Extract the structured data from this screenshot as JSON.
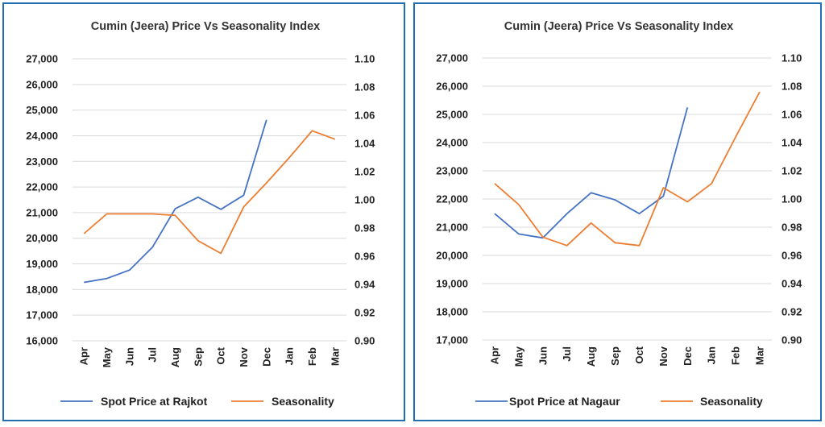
{
  "chart_data": [
    {
      "type": "line",
      "title": "Cumin (Jeera) Price Vs Seasonality Index",
      "categories": [
        "Apr",
        "May",
        "Jun",
        "Jul",
        "Aug",
        "Sep",
        "Oct",
        "Nov",
        "Dec",
        "Jan",
        "Feb",
        "Mar"
      ],
      "y_left_ticks": [
        "16,000",
        "17,000",
        "18,000",
        "19,000",
        "20,000",
        "21,000",
        "22,000",
        "23,000",
        "24,000",
        "25,000",
        "26,000",
        "27,000"
      ],
      "y_right_ticks": [
        "0.90",
        "0.92",
        "0.94",
        "0.96",
        "0.98",
        "1.00",
        "1.02",
        "1.04",
        "1.06",
        "1.08",
        "1.10"
      ],
      "ylim_left": [
        16000,
        27000
      ],
      "ylim_right": [
        0.9,
        1.1
      ],
      "grid": true,
      "legend_position": "bottom",
      "series": [
        {
          "name": "Spot Price at Rajkot",
          "axis": "left",
          "color": "#4472c4",
          "values": [
            18280,
            18430,
            18760,
            19650,
            21150,
            21600,
            21130,
            21680,
            24620,
            null,
            null,
            null
          ]
        },
        {
          "name": "Seasonality",
          "axis": "right",
          "color": "#ed7d31",
          "values": [
            0.976,
            0.99,
            0.99,
            0.99,
            0.989,
            0.971,
            0.962,
            0.995,
            1.012,
            1.03,
            1.049,
            1.043
          ]
        }
      ]
    },
    {
      "type": "line",
      "title": "Cumin (Jeera) Price Vs Seasonality Index",
      "categories": [
        "Apr",
        "May",
        "Jun",
        "Jul",
        "Aug",
        "Sep",
        "Oct",
        "Nov",
        "Dec",
        "Jan",
        "Feb",
        "Mar"
      ],
      "y_left_ticks": [
        "17,000",
        "18,000",
        "19,000",
        "20,000",
        "21,000",
        "22,000",
        "23,000",
        "24,000",
        "25,000",
        "26,000",
        "27,000"
      ],
      "y_right_ticks": [
        "0.90",
        "0.92",
        "0.94",
        "0.96",
        "0.98",
        "1.00",
        "1.02",
        "1.04",
        "1.06",
        "1.08",
        "1.10"
      ],
      "ylim_left": [
        17000,
        27000
      ],
      "ylim_right": [
        0.9,
        1.1
      ],
      "grid": true,
      "legend_position": "bottom",
      "series": [
        {
          "name": "Spot Price at Nagaur",
          "axis": "left",
          "color": "#4472c4",
          "values": [
            21480,
            20760,
            20620,
            21480,
            22220,
            21970,
            21480,
            22100,
            25250,
            null,
            null,
            null
          ]
        },
        {
          "name": "Seasonality",
          "axis": "right",
          "color": "#ed7d31",
          "values": [
            1.011,
            0.996,
            0.973,
            0.967,
            0.983,
            0.969,
            0.967,
            1.008,
            0.998,
            1.011,
            1.044,
            1.076
          ]
        }
      ]
    }
  ]
}
